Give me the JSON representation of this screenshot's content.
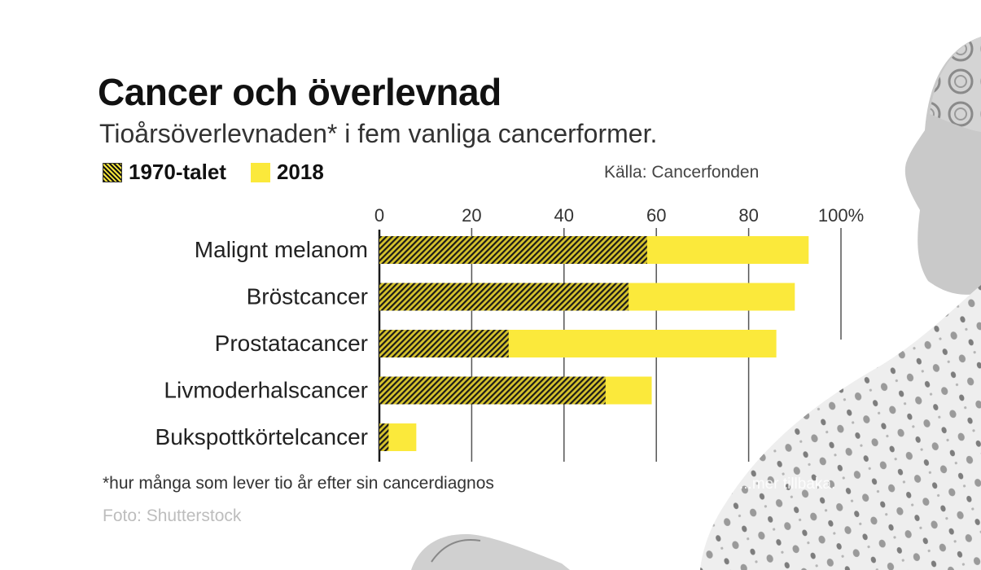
{
  "title": "Cancer och överlevnad",
  "subtitle": "Tioårsöverlevnaden* i fem vanliga cancerformer.",
  "legend": {
    "s1970": "1970-talet",
    "s2018": "2018"
  },
  "source": "Källa: Cancerfonden",
  "footnote": "*hur många som lever tio år efter sin cancerdiagnos",
  "credit": "Foto: Shutterstock",
  "overlay_text": "...mer tillbaka.",
  "colors": {
    "bar_2018": "#fbe93b",
    "bar_1970": "#d6c32c",
    "hatch": "#1a1a1a",
    "grid": "#555555"
  },
  "chart_data": {
    "type": "bar",
    "orientation": "horizontal",
    "title": "Cancer och överlevnad",
    "subtitle": "Tioårsöverlevnaden* i fem vanliga cancerformer.",
    "categories": [
      "Malignt melanom",
      "Bröstcancer",
      "Prostatacancer",
      "Livmoderhalscancer",
      "Bukspottkörtelcancer"
    ],
    "series": [
      {
        "name": "1970-talet",
        "values": [
          58,
          54,
          28,
          49,
          2
        ]
      },
      {
        "name": "2018",
        "values": [
          93,
          90,
          86,
          59,
          8
        ]
      }
    ],
    "xticks": [
      "0",
      "20",
      "40",
      "60",
      "80",
      "100%"
    ],
    "xtick_values": [
      0,
      20,
      40,
      60,
      80,
      100
    ],
    "xlim": [
      0,
      100
    ],
    "xlabel": "",
    "ylabel": "",
    "legend_position": "top-left",
    "grid": true
  }
}
